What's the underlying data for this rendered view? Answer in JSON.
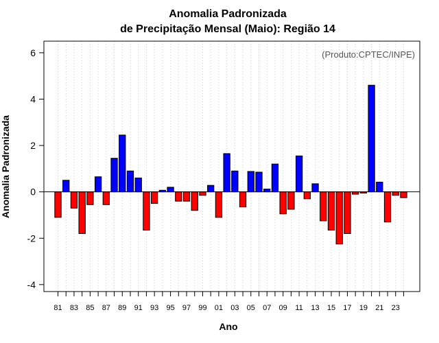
{
  "chart_data": {
    "type": "bar",
    "title": "Anomalia Padronizada",
    "subtitle": "de Precipitação Mensal (Maio): Região 14",
    "product": "(Produto:CPTEC/INPE)",
    "xlabel": "Ano",
    "ylabel": "Anomalia Padronizada",
    "ylim": [
      -4.3,
      6.5
    ],
    "yticks": [
      -4,
      -2,
      0,
      2,
      4,
      6
    ],
    "grid": "vertical dotted",
    "colors": {
      "positive": "#0000ff",
      "negative": "#ff0000",
      "frame": "#000000",
      "grid": "#cccccc"
    },
    "categories": [
      "81",
      "82",
      "83",
      "84",
      "85",
      "86",
      "87",
      "88",
      "89",
      "90",
      "91",
      "92",
      "93",
      "94",
      "95",
      "96",
      "97",
      "98",
      "99",
      "00",
      "01",
      "02",
      "03",
      "04",
      "05",
      "06",
      "07",
      "08",
      "09",
      "10",
      "11",
      "12",
      "13",
      "14",
      "15",
      "16",
      "17",
      "18",
      "19",
      "20",
      "21",
      "22",
      "23",
      "24"
    ],
    "xtick_labels": [
      "81",
      "83",
      "85",
      "87",
      "89",
      "91",
      "93",
      "95",
      "97",
      "99",
      "01",
      "03",
      "05",
      "07",
      "09",
      "11",
      "13",
      "15",
      "17",
      "19",
      "21",
      "23"
    ],
    "values": [
      -1.1,
      0.5,
      -0.7,
      -1.8,
      -0.55,
      0.65,
      -0.55,
      1.45,
      2.45,
      0.9,
      0.6,
      -1.65,
      -0.5,
      0.07,
      0.2,
      -0.4,
      -0.4,
      -0.8,
      -0.15,
      0.28,
      -1.1,
      1.65,
      0.9,
      -0.65,
      0.88,
      0.85,
      0.12,
      1.2,
      -0.95,
      -0.75,
      1.55,
      -0.3,
      0.35,
      -1.25,
      -1.65,
      -2.25,
      -1.8,
      -0.1,
      -0.05,
      4.6,
      0.42,
      -1.3,
      -0.15,
      -0.25
    ]
  }
}
